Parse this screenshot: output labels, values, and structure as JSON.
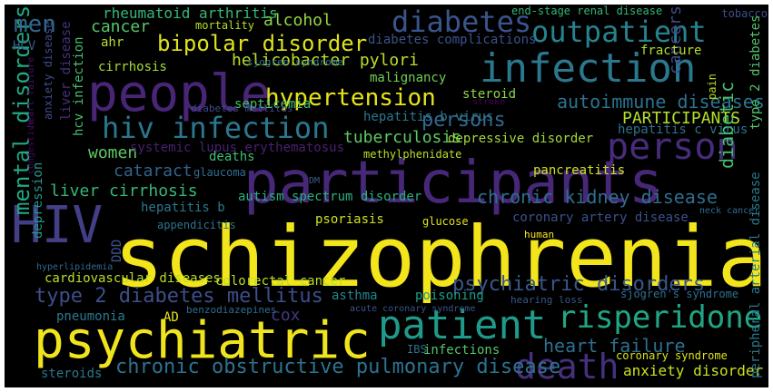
{
  "wordcloud": {
    "background": "#000000",
    "words": [
      {
        "text": "schizophrenia",
        "color": "#f3e51b"
      },
      {
        "text": "participants",
        "color": "#472878"
      },
      {
        "text": "psychiatric",
        "color": "#f0e51c"
      },
      {
        "text": "people",
        "color": "#482576"
      },
      {
        "text": "HIV",
        "color": "#433e85"
      },
      {
        "text": "infection",
        "color": "#2a788e"
      },
      {
        "text": "person",
        "color": "#472c7a"
      },
      {
        "text": "patient",
        "color": "#1f9a8a"
      },
      {
        "text": "death",
        "color": "#46307e"
      },
      {
        "text": "risperidone",
        "color": "#21a685"
      },
      {
        "text": "hiv infection",
        "color": "#2a788e"
      },
      {
        "text": "diabetes",
        "color": "#3a548c"
      },
      {
        "text": "outpatient",
        "color": "#26828e"
      },
      {
        "text": "hypertension",
        "color": "#e5e419"
      },
      {
        "text": "bipolar disorder",
        "color": "#dde318"
      },
      {
        "text": "mental disorders",
        "color": "#22a884"
      },
      {
        "text": "type 2 diabetes mellitus",
        "color": "#3d4e8a"
      },
      {
        "text": "chronic obstructive pulmonary disease",
        "color": "#2c728e"
      },
      {
        "text": "psychiatric disorders",
        "color": "#38588c"
      },
      {
        "text": "men",
        "color": "#31688e"
      },
      {
        "text": "women",
        "color": "#5ec962"
      },
      {
        "text": "cancer",
        "color": "#56c667"
      },
      {
        "text": "tuberculosis",
        "color": "#5ec962"
      },
      {
        "text": "persons",
        "color": "#31688e"
      },
      {
        "text": "autoimmune diseases",
        "color": "#2c728e"
      },
      {
        "text": "chronic kidney disease",
        "color": "#2e6e8e"
      },
      {
        "text": "liver cirrhosis",
        "color": "#35b779"
      },
      {
        "text": "cataract",
        "color": "#33638d"
      },
      {
        "text": "alcohol",
        "color": "#90d743"
      },
      {
        "text": "helicobacter pylori",
        "color": "#bddf26"
      },
      {
        "text": "heart failure",
        "color": "#2e6f8e"
      },
      {
        "text": "PARTICIPANTS",
        "color": "#b5de2b"
      },
      {
        "text": "cancers",
        "color": "#3e4989"
      },
      {
        "text": "diabetic",
        "color": "#44bf70"
      },
      {
        "text": "cox",
        "color": "#453882"
      },
      {
        "text": "rheumatoid arthritis",
        "color": "#35b779"
      },
      {
        "text": "anxiety disorder",
        "color": "#cae11f"
      },
      {
        "text": "steroids",
        "color": "#2a788e"
      },
      {
        "text": "infections",
        "color": "#54c568"
      },
      {
        "text": "poisoning",
        "color": "#1e9c89"
      },
      {
        "text": "asthma",
        "color": "#25848e"
      },
      {
        "text": "pneumonia",
        "color": "#2a788e"
      },
      {
        "text": "cardiovascular diseases",
        "color": "#b8de29"
      },
      {
        "text": "colorectal cancer",
        "color": "#b8de29"
      },
      {
        "text": "coronary artery disease",
        "color": "#3b518b"
      },
      {
        "text": "autism spectrum disorder",
        "color": "#29af7f"
      },
      {
        "text": "psoriasis",
        "color": "#cde11d"
      },
      {
        "text": "hepatitis b",
        "color": "#2a788e"
      },
      {
        "text": "appendicitis",
        "color": "#2c738e"
      },
      {
        "text": "depression",
        "color": "#1f9a8a"
      },
      {
        "text": "glaucoma",
        "color": "#2e6e8e"
      },
      {
        "text": "deaths",
        "color": "#3fbc73"
      },
      {
        "text": "methylphenidate",
        "color": "#b8de29"
      },
      {
        "text": "depressive disorder",
        "color": "#a2da37"
      },
      {
        "text": "hepatitis b virus",
        "color": "#2a788e"
      },
      {
        "text": "hepatitis c virus",
        "color": "#2c728e"
      },
      {
        "text": "pancreatitis",
        "color": "#cde11d"
      },
      {
        "text": "steroid",
        "color": "#90d743"
      },
      {
        "text": "septicemia",
        "color": "#46c06f"
      },
      {
        "text": "malignancy",
        "color": "#70cf57"
      },
      {
        "text": "cirrhosis",
        "color": "#a5db36"
      },
      {
        "text": "ahr",
        "color": "#b5de2b"
      },
      {
        "text": "fracture",
        "color": "#b5de2b"
      },
      {
        "text": "diabetes complications",
        "color": "#3b528b"
      },
      {
        "text": "mortality",
        "color": "#b8de29"
      },
      {
        "text": "sjogren syndrome",
        "color": "#2b758e"
      },
      {
        "text": "end-stage renal disease",
        "color": "#35b779"
      },
      {
        "text": "tobacco",
        "color": "#3b518b"
      },
      {
        "text": "HCV",
        "color": "#38588c"
      },
      {
        "text": "hcv infection",
        "color": "#44bf70"
      },
      {
        "text": "liver disease",
        "color": "#46307e"
      },
      {
        "text": "anxiety disease",
        "color": "#3e4c8a"
      },
      {
        "text": "heart failure",
        "color": "#471365"
      },
      {
        "text": "congestive",
        "color": "#46085c"
      },
      {
        "text": "diabetes mellitus",
        "color": "#3e4989"
      },
      {
        "text": "systemic lupus erythematosus",
        "color": "#482071"
      },
      {
        "text": "stroke",
        "color": "#450559"
      },
      {
        "text": "pain",
        "color": "#b8de29"
      },
      {
        "text": "type 2 diabetes",
        "color": "#52c569"
      },
      {
        "text": "peripheral arterial disease",
        "color": "#2a788e"
      },
      {
        "text": "neck cancer",
        "color": "#2e6e8e"
      },
      {
        "text": "human",
        "color": "#fde725"
      },
      {
        "text": "glucose",
        "color": "#e2e418"
      },
      {
        "text": "hyperlipidemia",
        "color": "#31688e"
      },
      {
        "text": "DDD",
        "color": "#3b528b"
      },
      {
        "text": "DM",
        "color": "#35608d"
      },
      {
        "text": "AD",
        "color": "#e2e418"
      },
      {
        "text": "benzodiazepines",
        "color": "#2e6e8e"
      },
      {
        "text": "acute coronary syndrome",
        "color": "#39568c"
      },
      {
        "text": "hearing loss",
        "color": "#39568c"
      },
      {
        "text": "sjogren's syndrome",
        "color": "#2c728e"
      },
      {
        "text": "IBS",
        "color": "#2e6f8e"
      },
      {
        "text": "coronary syndrome",
        "color": "#dde318"
      }
    ]
  }
}
